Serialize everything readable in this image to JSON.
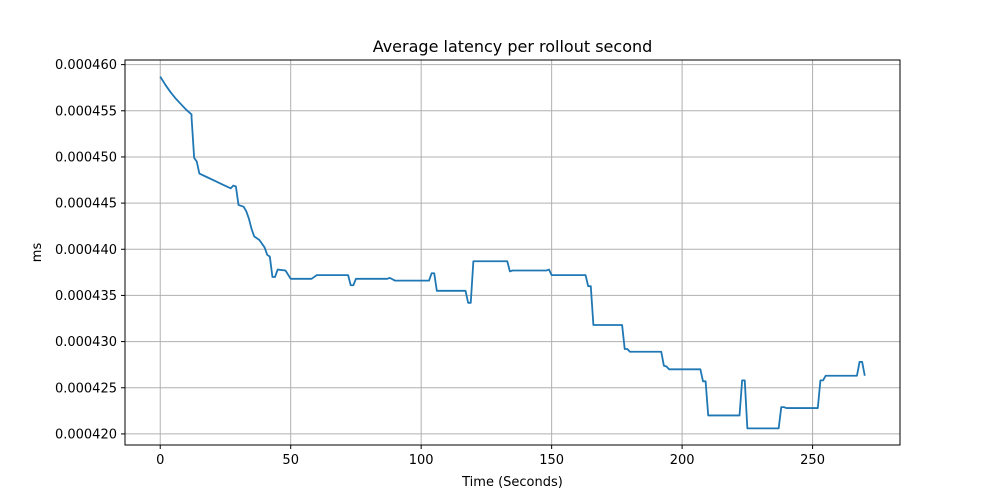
{
  "chart_data": {
    "type": "line",
    "title": "Average latency per rollout second",
    "xlabel": "Time (Seconds)",
    "ylabel": "ms",
    "xlim": [
      -13.5,
      283.5
    ],
    "ylim": [
      0.0004188,
      0.0004605
    ],
    "xticks": [
      0,
      50,
      100,
      150,
      200,
      250
    ],
    "yticks": [
      0.00042,
      0.000425,
      0.00043,
      0.000435,
      0.00044,
      0.000445,
      0.00045,
      0.000455,
      0.00046
    ],
    "x_tick_labels": [
      "0",
      "50",
      "100",
      "150",
      "200",
      "250"
    ],
    "y_tick_labels": [
      "0.000420",
      "0.000425",
      "0.000430",
      "0.000435",
      "0.000440",
      "0.000445",
      "0.000450",
      "0.000455",
      "0.000460"
    ],
    "grid": true,
    "series_color": "#1f77b4",
    "series": [
      {
        "points": [
          [
            0,
            0.0004587
          ],
          [
            2,
            0.0004578
          ],
          [
            4,
            0.000457
          ],
          [
            6,
            0.0004563
          ],
          [
            8,
            0.0004557
          ],
          [
            10,
            0.0004551
          ],
          [
            12,
            0.0004546
          ],
          [
            12,
            0.0004543
          ],
          [
            13,
            0.0004499
          ],
          [
            14,
            0.0004495
          ],
          [
            15,
            0.0004482
          ],
          [
            18,
            0.0004478
          ],
          [
            21,
            0.0004474
          ],
          [
            24,
            0.000447
          ],
          [
            27,
            0.0004466
          ],
          [
            28,
            0.0004469
          ],
          [
            29,
            0.0004468
          ],
          [
            30,
            0.0004448
          ],
          [
            32,
            0.0004446
          ],
          [
            33,
            0.0004441
          ],
          [
            34,
            0.0004433
          ],
          [
            35,
            0.0004422
          ],
          [
            36,
            0.0004414
          ],
          [
            38,
            0.000441
          ],
          [
            40,
            0.0004402
          ],
          [
            41,
            0.0004394
          ],
          [
            42,
            0.0004392
          ],
          [
            43,
            0.000437
          ],
          [
            44,
            0.000437
          ],
          [
            45,
            0.0004378
          ],
          [
            48,
            0.0004377
          ],
          [
            50,
            0.0004368
          ],
          [
            58,
            0.0004368
          ],
          [
            60,
            0.0004372
          ],
          [
            72,
            0.0004372
          ],
          [
            73,
            0.0004361
          ],
          [
            74,
            0.0004361
          ],
          [
            75,
            0.0004368
          ],
          [
            87,
            0.0004368
          ],
          [
            88,
            0.0004369
          ],
          [
            90,
            0.0004366
          ],
          [
            103,
            0.0004366
          ],
          [
            104,
            0.0004374
          ],
          [
            105,
            0.0004374
          ],
          [
            106,
            0.0004355
          ],
          [
            117,
            0.0004355
          ],
          [
            118,
            0.0004342
          ],
          [
            119,
            0.0004342
          ],
          [
            120,
            0.0004387
          ],
          [
            133,
            0.0004387
          ],
          [
            134,
            0.0004376
          ],
          [
            135,
            0.0004377
          ],
          [
            148,
            0.0004377
          ],
          [
            149,
            0.0004378
          ],
          [
            150,
            0.0004372
          ],
          [
            163,
            0.0004372
          ],
          [
            164,
            0.000436
          ],
          [
            165,
            0.000436
          ],
          [
            166,
            0.0004318
          ],
          [
            177,
            0.0004318
          ],
          [
            178,
            0.0004292
          ],
          [
            179,
            0.0004292
          ],
          [
            180,
            0.0004289
          ],
          [
            192,
            0.0004289
          ],
          [
            193,
            0.0004274
          ],
          [
            194,
            0.0004273
          ],
          [
            195,
            0.000427
          ],
          [
            207,
            0.000427
          ],
          [
            208,
            0.0004257
          ],
          [
            209,
            0.0004257
          ],
          [
            210,
            0.000422
          ],
          [
            222,
            0.000422
          ],
          [
            223,
            0.0004258
          ],
          [
            224,
            0.0004258
          ],
          [
            225,
            0.0004206
          ],
          [
            237,
            0.0004206
          ],
          [
            238,
            0.0004229
          ],
          [
            239,
            0.0004229
          ],
          [
            240,
            0.0004228
          ],
          [
            252,
            0.0004228
          ],
          [
            253,
            0.0004258
          ],
          [
            254,
            0.0004258
          ],
          [
            255,
            0.0004263
          ],
          [
            267,
            0.0004263
          ],
          [
            268,
            0.0004278
          ],
          [
            269,
            0.0004278
          ],
          [
            270,
            0.0004263
          ]
        ]
      }
    ]
  }
}
